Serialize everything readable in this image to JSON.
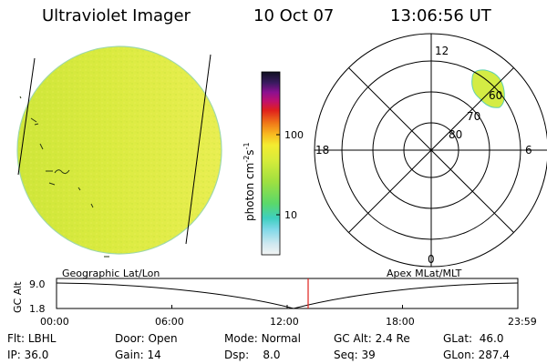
{
  "header": {
    "instrument": "Ultraviolet Imager",
    "date": "10 Oct 07",
    "time": "13:06:56 UT"
  },
  "colors": {
    "disk_fill": "#d8ea3c",
    "disk_right": "#e6ed4a",
    "dial_blob": "#d6ee44",
    "timeline_marker": "#e0201a"
  },
  "geo_panel": {
    "label": "Geographic Lat/Lon"
  },
  "polar_panel": {
    "label": "Apex MLat/MLT",
    "mlt_labels": {
      "top": "12",
      "right": "6",
      "bottom": "0",
      "left": "18"
    },
    "lat_labels": [
      "80",
      "70",
      "60"
    ]
  },
  "colorbar": {
    "unit_prefix": "photon cm",
    "unit_exp1": "-2",
    "unit_mid": "s",
    "unit_exp2": "-1",
    "tick_labels": [
      "100",
      "10"
    ]
  },
  "timeline": {
    "ylabel": "GC Alt",
    "ytick_top": "9.0",
    "ytick_bottom": "1.8",
    "x_labels": [
      "00:00",
      "06:00",
      "12:00",
      "18:00",
      "23:59"
    ],
    "marker_time": "13:07"
  },
  "status": {
    "row1": [
      {
        "label": "Flt:",
        "value": "LBHL"
      },
      {
        "label": "Door:",
        "value": "Open"
      },
      {
        "label": "Mode:",
        "value": "Normal"
      },
      {
        "label": "GC Alt:",
        "value": "2.4 Re"
      },
      {
        "label": "GLat:",
        "value": "46.0"
      }
    ],
    "row2": [
      {
        "label": "IP:",
        "value": "36.0"
      },
      {
        "label": "Gain:",
        "value": "14"
      },
      {
        "label": "Dsp:",
        "value": "8.0"
      },
      {
        "label": "Seq:",
        "value": "39"
      },
      {
        "label": "GLon:",
        "value": "287.4"
      }
    ]
  }
}
